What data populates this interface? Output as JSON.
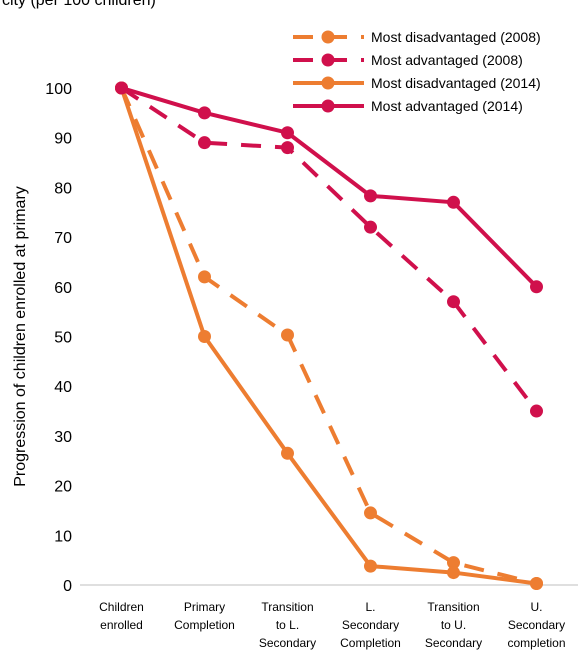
{
  "title_fragment": "city (per 100 children)",
  "chart_data": {
    "type": "line",
    "title": "",
    "ylabel": "Progression of children enrolled at primary",
    "xlabel": "",
    "ylim": [
      0,
      100
    ],
    "yticks": [
      0,
      10,
      20,
      30,
      40,
      50,
      60,
      70,
      80,
      90,
      100
    ],
    "categories": [
      [
        "Children",
        "enrolled"
      ],
      [
        "Primary",
        "Completion"
      ],
      [
        "Transition",
        "to L.",
        "Secondary"
      ],
      [
        "L.",
        "Secondary",
        "Completion"
      ],
      [
        "Transition",
        "to U.",
        "Secondary"
      ],
      [
        "U.",
        "Secondary",
        "completion"
      ]
    ],
    "legend_position": "top-right",
    "grid": false,
    "series": [
      {
        "name": "Most disadvantaged (2008)",
        "color": "#ED7D31",
        "dashed": true,
        "values": [
          100,
          62,
          50.3,
          14.5,
          4.5,
          0.3
        ]
      },
      {
        "name": "Most advantaged (2008)",
        "color": "#D0104C",
        "dashed": true,
        "values": [
          100,
          89,
          88,
          72,
          57,
          35
        ]
      },
      {
        "name": "Most disadvantaged (2014)",
        "color": "#ED7D31",
        "dashed": false,
        "values": [
          100,
          50,
          26.5,
          3.8,
          2.5,
          0.3
        ]
      },
      {
        "name": "Most advantaged (2014)",
        "color": "#D0104C",
        "dashed": false,
        "values": [
          100,
          95,
          91,
          78.3,
          77,
          60
        ]
      }
    ]
  }
}
